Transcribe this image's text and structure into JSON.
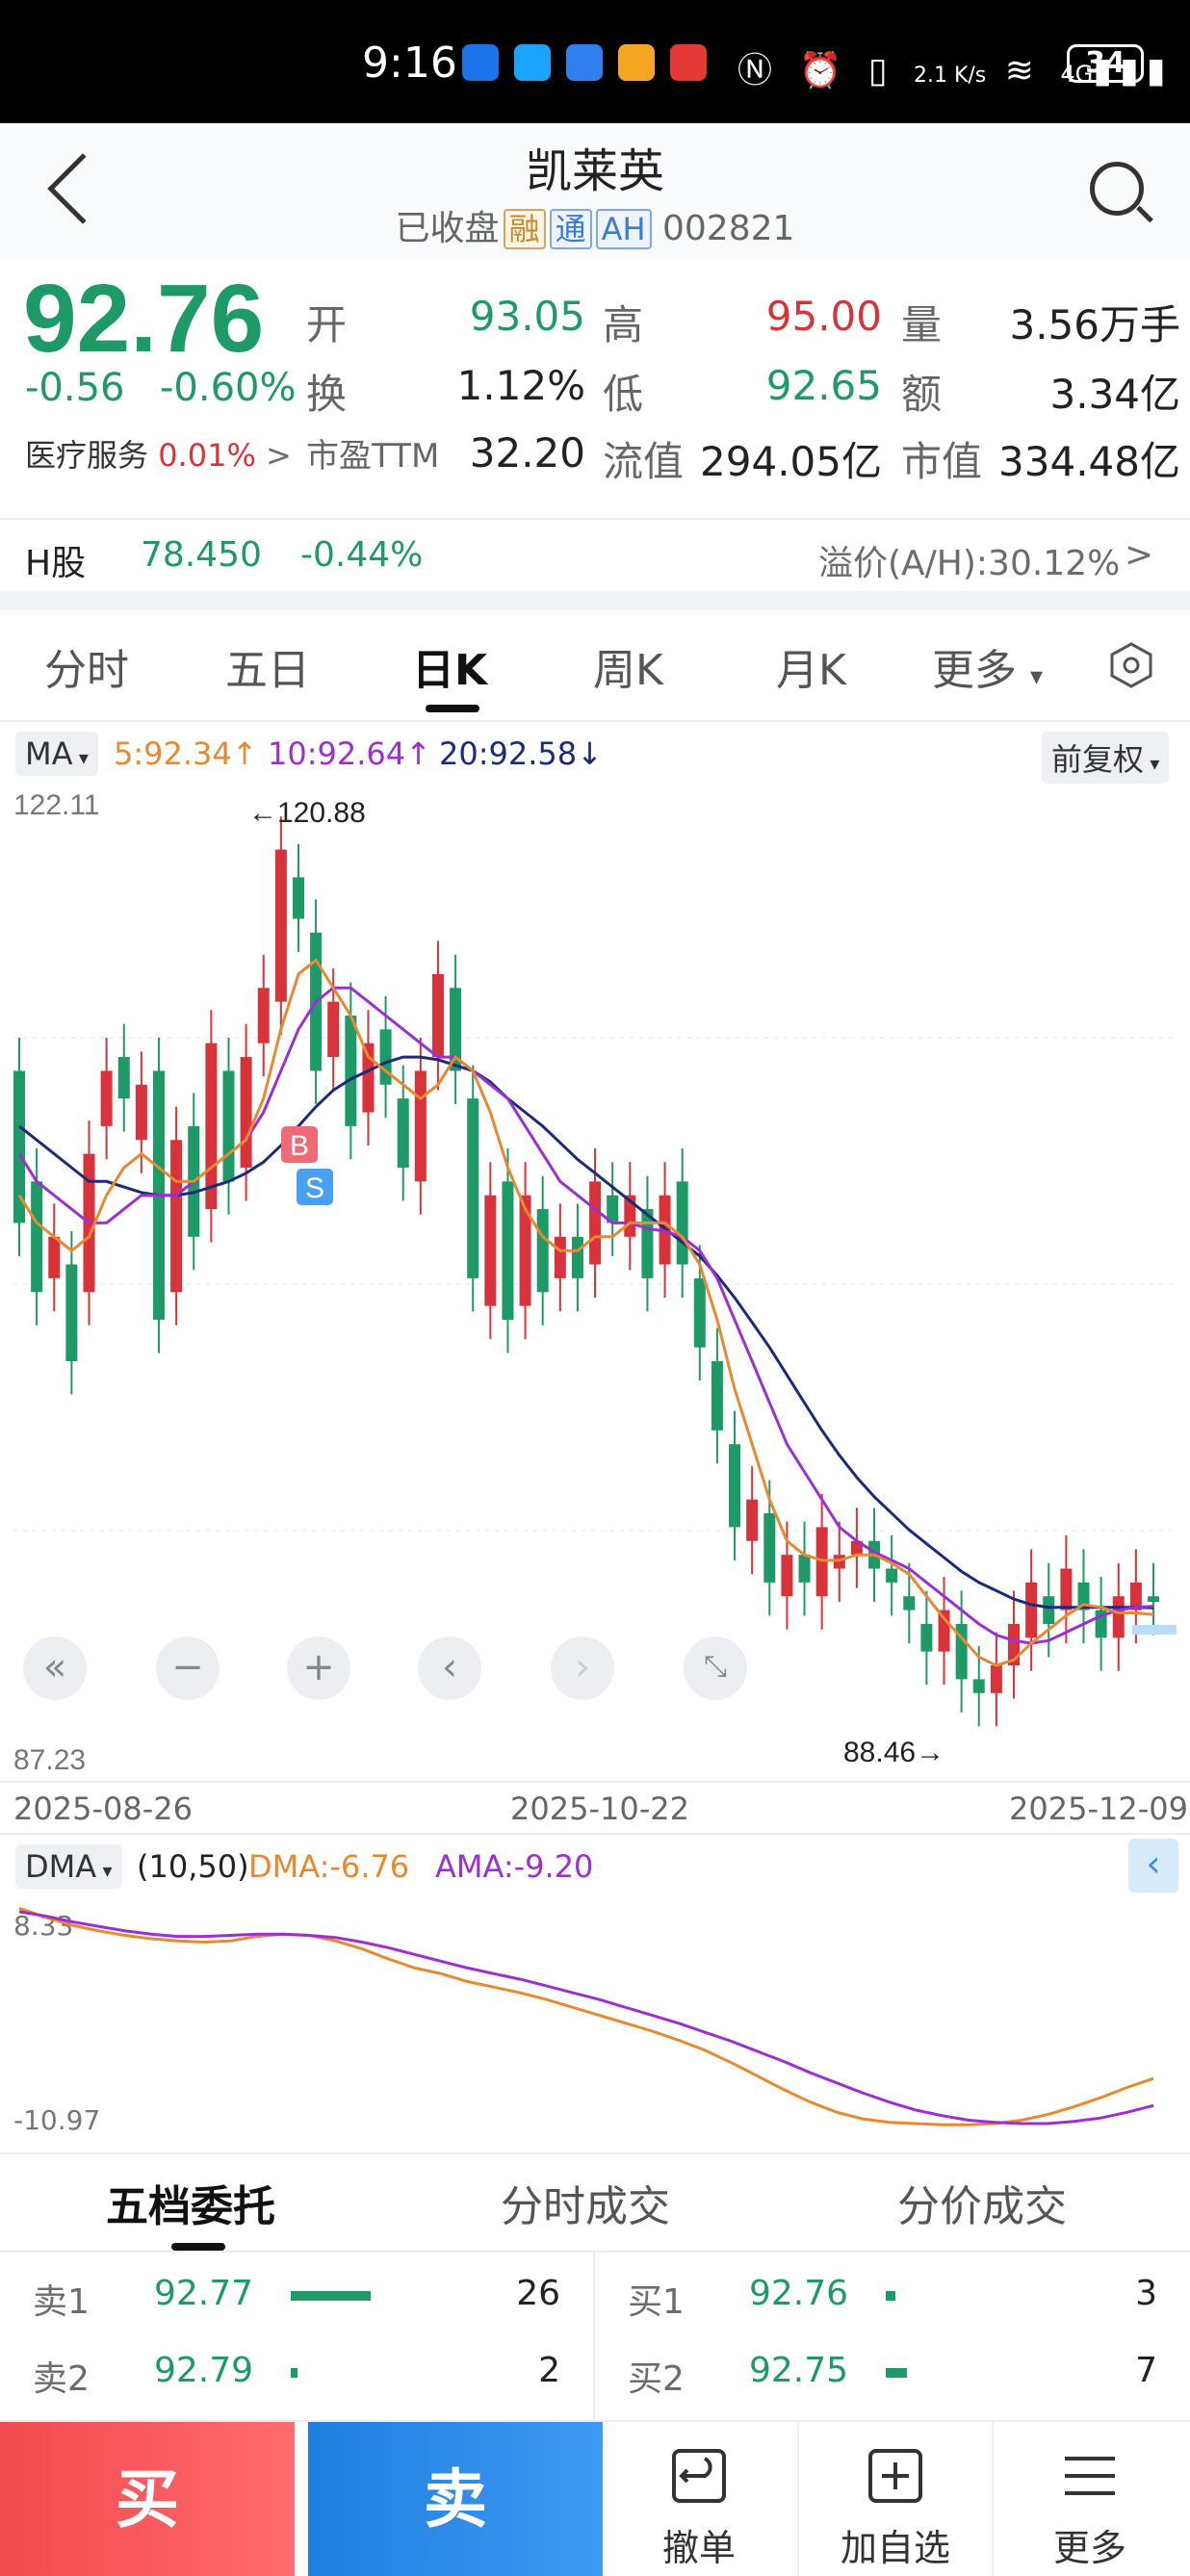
{
  "status_bar": {
    "time": "9:16",
    "net_speed": "2.1 K/s",
    "network": "4G",
    "battery": "34"
  },
  "header": {
    "title": "凯莱英",
    "status": "已收盘",
    "tags": [
      "融",
      "通",
      "AH"
    ],
    "code": "002821"
  },
  "quote": {
    "price": "92.76",
    "change": "-0.56",
    "change_pct": "-0.60%",
    "sector_label": "医疗服务",
    "sector_pct": "0.01%",
    "open_label": "开",
    "open": "93.05",
    "high_label": "高",
    "high": "95.00",
    "volume_label": "量",
    "volume": "3.56万手",
    "turnover_label": "换",
    "turnover": "1.12%",
    "low_label": "低",
    "low": "92.65",
    "amount_label": "额",
    "amount": "3.34亿",
    "pe_label": "市盈TTM",
    "pe": "32.20",
    "float_cap_label": "流值",
    "float_cap": "294.05亿",
    "mkt_cap_label": "市值",
    "mkt_cap": "334.48亿"
  },
  "h_share": {
    "label": "H股",
    "price": "78.450",
    "change_pct": "-0.44%",
    "premium": "溢价(A/H):30.12%"
  },
  "tabs": [
    "分时",
    "五日",
    "日K",
    "周K",
    "月K",
    "更多"
  ],
  "active_tab": "日K",
  "ma_legend": {
    "selector": "MA",
    "ma5": "5:92.34↑",
    "ma10": "10:92.64↑",
    "ma20": "20:92.58↓",
    "adjust": "前复权"
  },
  "chart_data": {
    "type": "candlestick",
    "y_axis_top": "122.11",
    "y_axis_bottom": "87.23",
    "max_annotation": "←120.88",
    "min_annotation": "88.46→",
    "x_labels": [
      "2025-08-26",
      "2025-10-22",
      "2025-12-09"
    ],
    "ylim": [
      87.23,
      122.11
    ],
    "markers": [
      "B",
      "S"
    ],
    "candles": [
      {
        "o": 112.0,
        "c": 106.5
      },
      {
        "o": 108.0,
        "c": 104.0
      },
      {
        "o": 104.5,
        "c": 106.0
      },
      {
        "o": 105.0,
        "c": 101.5
      },
      {
        "o": 104.0,
        "c": 109.0
      },
      {
        "o": 110.0,
        "c": 112.0
      },
      {
        "o": 112.5,
        "c": 111.0
      },
      {
        "o": 109.5,
        "c": 111.5
      },
      {
        "o": 112.0,
        "c": 103.0
      },
      {
        "o": 104.0,
        "c": 109.5
      },
      {
        "o": 110.0,
        "c": 106.0
      },
      {
        "o": 107.0,
        "c": 113.0
      },
      {
        "o": 112.0,
        "c": 108.0
      },
      {
        "o": 108.5,
        "c": 112.5
      },
      {
        "o": 113.0,
        "c": 115.0
      },
      {
        "o": 114.5,
        "c": 120.0
      },
      {
        "o": 119.0,
        "c": 117.5
      },
      {
        "o": 117.0,
        "c": 112.0
      },
      {
        "o": 112.5,
        "c": 114.5
      },
      {
        "o": 114.0,
        "c": 110.0
      },
      {
        "o": 110.5,
        "c": 113.0
      },
      {
        "o": 113.5,
        "c": 111.5
      },
      {
        "o": 111.0,
        "c": 108.5
      },
      {
        "o": 108.0,
        "c": 112.0
      },
      {
        "o": 112.5,
        "c": 115.5
      },
      {
        "o": 115.0,
        "c": 112.0
      },
      {
        "o": 111.0,
        "c": 104.5
      },
      {
        "o": 103.5,
        "c": 107.5
      },
      {
        "o": 108.0,
        "c": 103.0
      },
      {
        "o": 103.5,
        "c": 107.5
      },
      {
        "o": 107.0,
        "c": 104.0
      },
      {
        "o": 104.5,
        "c": 106.0
      },
      {
        "o": 106.0,
        "c": 104.5
      },
      {
        "o": 105.0,
        "c": 108.0
      },
      {
        "o": 107.5,
        "c": 106.5
      },
      {
        "o": 106.0,
        "c": 107.5
      },
      {
        "o": 107.0,
        "c": 104.5
      },
      {
        "o": 105.0,
        "c": 107.5
      },
      {
        "o": 108.0,
        "c": 105.0
      },
      {
        "o": 104.5,
        "c": 102.0
      },
      {
        "o": 101.5,
        "c": 99.0
      },
      {
        "o": 98.5,
        "c": 95.5
      },
      {
        "o": 95.0,
        "c": 96.5
      },
      {
        "o": 96.0,
        "c": 93.5
      },
      {
        "o": 93.0,
        "c": 94.5
      },
      {
        "o": 94.5,
        "c": 93.5
      },
      {
        "o": 93.0,
        "c": 95.5
      },
      {
        "o": 94.0,
        "c": 94.5
      },
      {
        "o": 94.5,
        "c": 95.0
      },
      {
        "o": 95.0,
        "c": 94.0
      },
      {
        "o": 94.0,
        "c": 93.5
      },
      {
        "o": 93.0,
        "c": 92.5
      },
      {
        "o": 92.0,
        "c": 91.0
      },
      {
        "o": 91.0,
        "c": 92.5
      },
      {
        "o": 92.0,
        "c": 90.0
      },
      {
        "o": 90.0,
        "c": 89.5
      },
      {
        "o": 89.5,
        "c": 90.5
      },
      {
        "o": 90.5,
        "c": 92.0
      },
      {
        "o": 91.5,
        "c": 93.5
      },
      {
        "o": 93.0,
        "c": 92.0
      },
      {
        "o": 92.5,
        "c": 94.0
      },
      {
        "o": 93.5,
        "c": 92.5
      },
      {
        "o": 92.5,
        "c": 91.5
      },
      {
        "o": 91.5,
        "c": 93.0
      },
      {
        "o": 92.5,
        "c": 93.5
      },
      {
        "o": 93.0,
        "c": 92.8
      }
    ],
    "ma5": [
      107.5,
      106.5,
      106.0,
      105.5,
      106.0,
      107.5,
      108.5,
      109.0,
      108.5,
      108.0,
      108.0,
      108.5,
      109.0,
      109.5,
      111.0,
      113.5,
      115.5,
      116.0,
      115.0,
      114.0,
      112.5,
      112.0,
      111.5,
      111.0,
      111.5,
      112.5,
      112.0,
      110.5,
      108.5,
      107.0,
      106.0,
      105.5,
      105.5,
      106.0,
      106.0,
      106.5,
      106.5,
      106.5,
      106.0,
      105.0,
      103.0,
      100.5,
      98.5,
      96.5,
      95.0,
      94.5,
      94.3,
      94.3,
      94.5,
      94.5,
      94.2,
      93.8,
      93.0,
      92.2,
      91.5,
      90.8,
      90.5,
      90.7,
      91.3,
      91.8,
      92.3,
      92.7,
      92.6,
      92.4,
      92.4,
      92.34
    ],
    "ma10": [
      109.0,
      108.0,
      107.5,
      107.0,
      106.5,
      106.5,
      107.0,
      107.5,
      107.5,
      107.5,
      108.0,
      108.5,
      109.0,
      109.5,
      110.5,
      112.0,
      113.5,
      114.5,
      115.0,
      115.0,
      114.5,
      114.0,
      113.5,
      113.0,
      112.5,
      112.5,
      112.0,
      111.5,
      111.0,
      110.0,
      109.0,
      108.0,
      107.5,
      107.0,
      106.5,
      106.5,
      106.3,
      106.2,
      106.0,
      105.5,
      104.5,
      103.0,
      101.5,
      100.0,
      98.5,
      97.5,
      96.5,
      95.5,
      95.0,
      94.6,
      94.3,
      94.0,
      93.5,
      93.0,
      92.5,
      92.0,
      91.6,
      91.4,
      91.3,
      91.4,
      91.7,
      92.0,
      92.3,
      92.5,
      92.6,
      92.64
    ],
    "ma20": [
      110.0,
      109.5,
      109.0,
      108.5,
      108.0,
      108.0,
      107.8,
      107.6,
      107.5,
      107.5,
      107.6,
      107.8,
      108.0,
      108.3,
      108.7,
      109.3,
      110.0,
      110.7,
      111.3,
      111.7,
      112.0,
      112.3,
      112.5,
      112.5,
      112.4,
      112.2,
      112.0,
      111.6,
      111.0,
      110.5,
      110.0,
      109.4,
      108.8,
      108.3,
      107.8,
      107.3,
      106.8,
      106.3,
      105.8,
      105.3,
      104.6,
      103.8,
      102.9,
      102.0,
      101.0,
      100.0,
      99.0,
      98.1,
      97.3,
      96.6,
      96.0,
      95.4,
      94.9,
      94.4,
      93.9,
      93.5,
      93.2,
      92.9,
      92.7,
      92.6,
      92.6,
      92.6,
      92.6,
      92.6,
      92.6,
      92.58
    ]
  },
  "dma": {
    "selector": "DMA",
    "params": "(10,50)",
    "dma_label": "DMA:-6.76",
    "ama_label": "AMA:-9.20",
    "y_top": "8.33",
    "y_bottom": "-10.97",
    "ylim": [
      -10.97,
      8.33
    ],
    "dma": [
      8.3,
      7.5,
      6.8,
      6.3,
      5.9,
      5.6,
      5.4,
      5.3,
      5.4,
      5.8,
      6.0,
      5.9,
      5.4,
      4.7,
      3.8,
      3.0,
      2.5,
      1.8,
      1.3,
      0.8,
      0.2,
      -0.5,
      -1.2,
      -1.9,
      -2.6,
      -3.4,
      -4.3,
      -5.4,
      -6.6,
      -7.8,
      -8.9,
      -9.8,
      -10.4,
      -10.7,
      -10.8,
      -10.9,
      -10.9,
      -10.8,
      -10.5,
      -10.0,
      -9.3,
      -8.5,
      -7.6,
      -6.8
    ],
    "ama": [
      8.0,
      7.6,
      7.1,
      6.7,
      6.3,
      6.0,
      5.8,
      5.8,
      5.9,
      6.0,
      6.0,
      5.9,
      5.7,
      5.3,
      4.8,
      4.2,
      3.6,
      3.0,
      2.5,
      2.0,
      1.4,
      0.8,
      0.2,
      -0.5,
      -1.2,
      -1.9,
      -2.7,
      -3.5,
      -4.4,
      -5.3,
      -6.3,
      -7.2,
      -8.1,
      -8.9,
      -9.6,
      -10.1,
      -10.5,
      -10.7,
      -10.8,
      -10.8,
      -10.6,
      -10.3,
      -9.8,
      -9.2
    ]
  },
  "bottom_tabs": [
    "五档委托",
    "分时成交",
    "分价成交"
  ],
  "order_book": {
    "sell": [
      {
        "label": "卖1",
        "price": "92.77",
        "vol": "26",
        "bar": 0.75
      },
      {
        "label": "卖2",
        "price": "92.79",
        "vol": "2",
        "bar": 0.06
      }
    ],
    "buy": [
      {
        "label": "买1",
        "price": "92.76",
        "vol": "3",
        "bar": 0.09
      },
      {
        "label": "买2",
        "price": "92.75",
        "vol": "7",
        "bar": 0.2
      }
    ]
  },
  "actions": {
    "buy": "买",
    "sell": "卖",
    "cancel": "撤单",
    "watch": "加自选",
    "more": "更多"
  }
}
